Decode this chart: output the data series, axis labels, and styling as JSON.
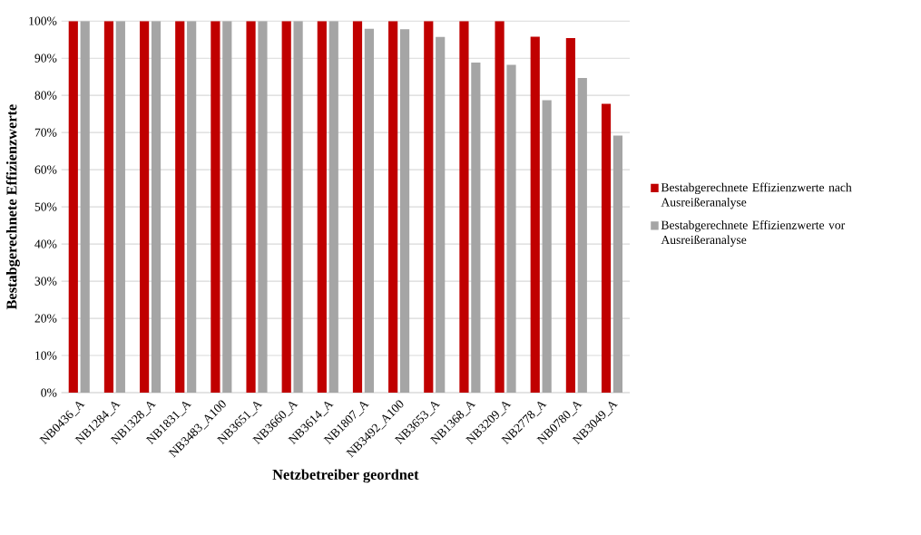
{
  "chart_data": {
    "type": "bar",
    "xlabel": "Netzbetreiber geordnet",
    "ylabel": "Bestabgerechnete Effizienzwerte",
    "categories": [
      "NB0436_A",
      "NB1284_A",
      "NB1328_A",
      "NB1831_A",
      "NB3483_A100",
      "NB3651_A",
      "NB3660_A",
      "NB3614_A",
      "NB1807_A",
      "NB3492_A100",
      "NB3653_A",
      "NB1368_A",
      "NB3209_A",
      "NB2778_A",
      "NB0780_A",
      "NB3049_A"
    ],
    "series": [
      {
        "name": "Bestabgerechnete Effizienzwerte nach Ausreißeranalyse",
        "color": "#c00000",
        "values": [
          100,
          100,
          100,
          100,
          100,
          100,
          100,
          100,
          100,
          100,
          100,
          100,
          100,
          95.8,
          95.4,
          77.7
        ]
      },
      {
        "name": "Bestabgerechnete Effizienzwerte vor Ausreißeranalyse",
        "color": "#a5a5a5",
        "values": [
          100,
          100,
          100,
          100,
          100,
          100,
          100,
          100,
          97.9,
          97.8,
          95.7,
          88.8,
          88.2,
          78.7,
          84.7,
          69.2
        ]
      }
    ],
    "ylim": [
      0,
      100
    ],
    "yticks": [
      {
        "value": 0,
        "label": "0%"
      },
      {
        "value": 10,
        "label": "10%"
      },
      {
        "value": 20,
        "label": "20%"
      },
      {
        "value": 30,
        "label": "30%"
      },
      {
        "value": 40,
        "label": "40%"
      },
      {
        "value": 50,
        "label": "50%"
      },
      {
        "value": 60,
        "label": "60%"
      },
      {
        "value": 70,
        "label": "70%"
      },
      {
        "value": 80,
        "label": "80%"
      },
      {
        "value": 90,
        "label": "90%"
      },
      {
        "value": 100,
        "label": "100%"
      }
    ],
    "grid": "y",
    "legend": "right"
  }
}
